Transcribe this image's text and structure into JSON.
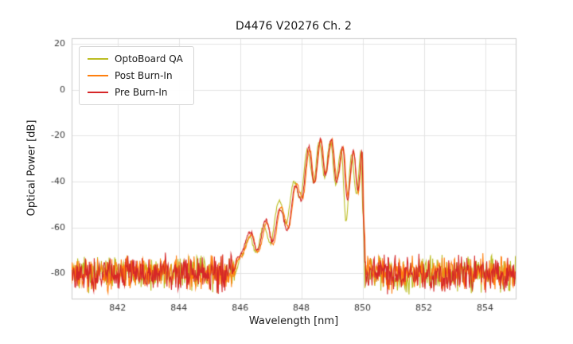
{
  "chart_data": {
    "type": "line",
    "title": "D4476 V20276 Ch. 2",
    "xlabel": "Wavelength [nm]",
    "ylabel": "Optical Power [dB]",
    "xlim": [
      840.5,
      855
    ],
    "ylim": [
      -91,
      22.5
    ],
    "xticks": [
      842,
      844,
      846,
      848,
      850,
      852,
      854
    ],
    "yticks": [
      20,
      0,
      -20,
      -40,
      -60,
      -80
    ],
    "grid": true,
    "legend_position": "upper left",
    "background_color": "#ffffff",
    "grid_color": "#e3e3e3",
    "frame_color": "#cccccc",
    "tick_label_color": "#3a3a3a",
    "noise_floor": {
      "mean_db": -80,
      "spread_db": 6.5
    },
    "signal_cutoff_nm": 850.0,
    "series": [
      {
        "name": "OptoBoard QA",
        "color": "#bcbd22",
        "seed": 7,
        "envelope_points_nm_db": [
          [
            845.7,
            -88
          ],
          [
            846.05,
            -72
          ],
          [
            846.32,
            -64
          ],
          [
            846.52,
            -71
          ],
          [
            846.78,
            -59
          ],
          [
            846.98,
            -67
          ],
          [
            847.28,
            -48
          ],
          [
            847.5,
            -58
          ],
          [
            847.76,
            -40
          ],
          [
            847.96,
            -47
          ],
          [
            848.2,
            -26
          ],
          [
            848.4,
            -40
          ],
          [
            848.58,
            -22.5
          ],
          [
            848.76,
            -38
          ],
          [
            848.95,
            -22
          ],
          [
            849.12,
            -41
          ],
          [
            849.3,
            -26
          ],
          [
            849.46,
            -57
          ],
          [
            849.64,
            -28
          ],
          [
            849.8,
            -46
          ],
          [
            849.94,
            -27.5
          ],
          [
            850.02,
            -55
          ],
          [
            850.08,
            -88
          ]
        ]
      },
      {
        "name": "Post Burn-In",
        "color": "#ff7f0e",
        "seed": 19,
        "envelope_points_nm_db": [
          [
            845.65,
            -88
          ],
          [
            846.0,
            -73
          ],
          [
            846.38,
            -63
          ],
          [
            846.58,
            -71
          ],
          [
            846.88,
            -58
          ],
          [
            847.08,
            -67
          ],
          [
            847.34,
            -51
          ],
          [
            847.58,
            -60
          ],
          [
            847.84,
            -41
          ],
          [
            848.04,
            -47
          ],
          [
            848.27,
            -25.5
          ],
          [
            848.44,
            -40
          ],
          [
            848.64,
            -22
          ],
          [
            848.8,
            -36
          ],
          [
            849.0,
            -21.8
          ],
          [
            849.17,
            -39
          ],
          [
            849.37,
            -25.5
          ],
          [
            849.52,
            -46
          ],
          [
            849.71,
            -27
          ],
          [
            849.86,
            -45
          ],
          [
            849.99,
            -27.5
          ],
          [
            850.06,
            -60
          ],
          [
            850.12,
            -88
          ]
        ]
      },
      {
        "name": "Pre Burn-In",
        "color": "#d62728",
        "seed": 42,
        "envelope_points_nm_db": [
          [
            845.6,
            -88
          ],
          [
            845.95,
            -73
          ],
          [
            846.35,
            -62
          ],
          [
            846.55,
            -70
          ],
          [
            846.85,
            -57
          ],
          [
            847.05,
            -66
          ],
          [
            847.3,
            -52
          ],
          [
            847.55,
            -61
          ],
          [
            847.8,
            -42
          ],
          [
            848.0,
            -48
          ],
          [
            848.25,
            -25
          ],
          [
            848.42,
            -41
          ],
          [
            848.62,
            -21.5
          ],
          [
            848.78,
            -37
          ],
          [
            848.98,
            -21.8
          ],
          [
            849.15,
            -40
          ],
          [
            849.35,
            -25
          ],
          [
            849.5,
            -48
          ],
          [
            849.7,
            -26.5
          ],
          [
            849.85,
            -44
          ],
          [
            849.98,
            -27
          ],
          [
            850.04,
            -60
          ],
          [
            850.1,
            -88
          ]
        ]
      }
    ]
  }
}
